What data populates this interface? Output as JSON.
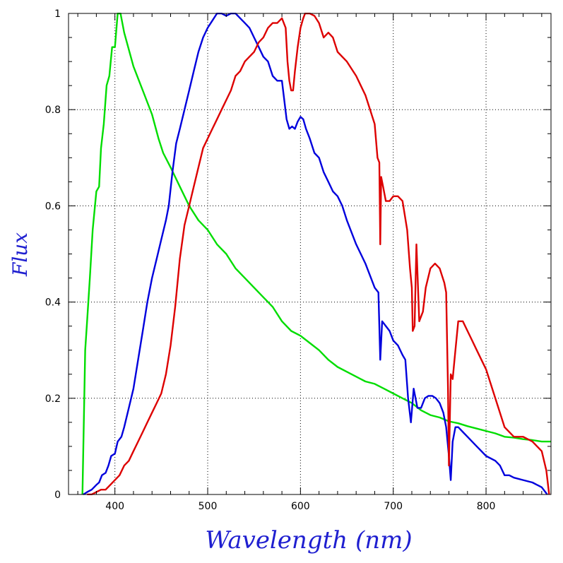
{
  "chart_data": {
    "type": "line",
    "xlabel": "Wavelength (nm)",
    "ylabel": "Flux",
    "xlim": [
      350,
      870
    ],
    "ylim": [
      0,
      1
    ],
    "xticks": [
      400,
      500,
      600,
      700,
      800
    ],
    "yticks": [
      0,
      0.2,
      0.4,
      0.6,
      0.8,
      1
    ],
    "ytick_labels": [
      "0",
      "0.2",
      "0.4",
      "0.6",
      "0.8",
      "1"
    ],
    "grid": true,
    "series": [
      {
        "color": "#00dd00",
        "x": [
          365,
          368,
          370,
          373,
          376,
          380,
          383,
          385,
          388,
          391,
          394,
          397,
          400,
          403,
          406,
          410,
          420,
          430,
          440,
          447,
          452,
          460,
          470,
          480,
          490,
          500,
          510,
          520,
          530,
          540,
          550,
          560,
          570,
          580,
          590,
          600,
          610,
          620,
          630,
          640,
          650,
          660,
          670,
          680,
          690,
          700,
          710,
          720,
          730,
          740,
          750,
          760,
          770,
          780,
          790,
          800,
          810,
          820,
          830,
          840,
          850,
          860,
          870
        ],
        "y": [
          0,
          0.3,
          0.36,
          0.45,
          0.55,
          0.63,
          0.64,
          0.72,
          0.77,
          0.85,
          0.87,
          0.93,
          0.93,
          1.0,
          1.0,
          0.96,
          0.89,
          0.84,
          0.79,
          0.74,
          0.71,
          0.68,
          0.64,
          0.6,
          0.57,
          0.55,
          0.52,
          0.5,
          0.47,
          0.45,
          0.43,
          0.41,
          0.39,
          0.36,
          0.34,
          0.33,
          0.315,
          0.3,
          0.28,
          0.265,
          0.255,
          0.245,
          0.235,
          0.23,
          0.22,
          0.21,
          0.2,
          0.19,
          0.175,
          0.165,
          0.16,
          0.152,
          0.148,
          0.142,
          0.137,
          0.132,
          0.127,
          0.12,
          0.118,
          0.115,
          0.113,
          0.11,
          0.11
        ]
      },
      {
        "color": "#0000dd",
        "x": [
          366,
          370,
          375,
          380,
          383,
          386,
          390,
          393,
          396,
          400,
          403,
          407,
          410,
          415,
          420,
          425,
          430,
          435,
          440,
          445,
          450,
          455,
          458,
          462,
          466,
          470,
          475,
          480,
          485,
          490,
          495,
          500,
          505,
          510,
          515,
          520,
          525,
          530,
          535,
          540,
          545,
          550,
          555,
          560,
          565,
          570,
          575,
          580,
          585,
          588,
          591,
          594,
          597,
          600,
          603,
          606,
          610,
          615,
          620,
          625,
          630,
          635,
          640,
          645,
          650,
          660,
          670,
          680,
          684,
          686,
          688,
          692,
          696,
          700,
          705,
          710,
          713,
          716,
          719,
          722,
          726,
          730,
          734,
          738,
          742,
          746,
          750,
          754,
          757,
          760,
          762,
          764,
          767,
          770,
          775,
          780,
          790,
          800,
          810,
          815,
          820,
          825,
          830,
          840,
          850,
          860,
          866
        ],
        "y": [
          0,
          0.005,
          0.01,
          0.02,
          0.025,
          0.04,
          0.045,
          0.06,
          0.08,
          0.085,
          0.11,
          0.12,
          0.14,
          0.18,
          0.22,
          0.28,
          0.34,
          0.4,
          0.45,
          0.49,
          0.53,
          0.57,
          0.6,
          0.67,
          0.73,
          0.76,
          0.8,
          0.84,
          0.88,
          0.92,
          0.95,
          0.97,
          0.985,
          1.0,
          1.0,
          0.995,
          1.0,
          1.0,
          0.99,
          0.98,
          0.97,
          0.95,
          0.93,
          0.91,
          0.9,
          0.87,
          0.86,
          0.86,
          0.78,
          0.76,
          0.765,
          0.76,
          0.775,
          0.785,
          0.78,
          0.76,
          0.74,
          0.71,
          0.7,
          0.67,
          0.65,
          0.63,
          0.62,
          0.6,
          0.57,
          0.52,
          0.48,
          0.43,
          0.42,
          0.28,
          0.36,
          0.35,
          0.34,
          0.32,
          0.31,
          0.29,
          0.28,
          0.2,
          0.15,
          0.22,
          0.18,
          0.18,
          0.2,
          0.205,
          0.205,
          0.2,
          0.19,
          0.17,
          0.14,
          0.08,
          0.03,
          0.11,
          0.14,
          0.14,
          0.13,
          0.12,
          0.1,
          0.08,
          0.07,
          0.06,
          0.04,
          0.04,
          0.035,
          0.03,
          0.025,
          0.015,
          0
        ]
      },
      {
        "color": "#dd0000",
        "x": [
          370,
          375,
          380,
          385,
          390,
          395,
          400,
          405,
          410,
          415,
          420,
          425,
          430,
          435,
          440,
          445,
          450,
          455,
          460,
          465,
          470,
          475,
          480,
          485,
          490,
          495,
          500,
          505,
          510,
          515,
          520,
          525,
          530,
          535,
          540,
          545,
          550,
          555,
          560,
          565,
          570,
          575,
          580,
          584,
          586,
          588,
          590,
          592,
          594,
          597,
          600,
          603,
          605,
          610,
          615,
          620,
          625,
          630,
          635,
          640,
          650,
          660,
          670,
          675,
          680,
          683,
          685,
          686,
          687,
          689,
          692,
          696,
          700,
          705,
          710,
          715,
          718,
          720,
          721,
          723,
          725,
          728,
          732,
          735,
          740,
          745,
          750,
          755,
          757,
          759,
          760,
          762,
          764,
          767,
          770,
          775,
          780,
          785,
          790,
          795,
          800,
          810,
          820,
          830,
          840,
          850,
          860,
          865,
          868
        ],
        "y": [
          0,
          0,
          0.005,
          0.01,
          0.01,
          0.02,
          0.03,
          0.04,
          0.06,
          0.07,
          0.09,
          0.11,
          0.13,
          0.15,
          0.17,
          0.19,
          0.21,
          0.25,
          0.31,
          0.39,
          0.49,
          0.56,
          0.6,
          0.64,
          0.68,
          0.72,
          0.74,
          0.76,
          0.78,
          0.8,
          0.82,
          0.84,
          0.87,
          0.88,
          0.9,
          0.91,
          0.92,
          0.94,
          0.95,
          0.97,
          0.98,
          0.98,
          0.99,
          0.97,
          0.9,
          0.86,
          0.84,
          0.84,
          0.88,
          0.93,
          0.97,
          0.99,
          1.0,
          1.0,
          0.995,
          0.98,
          0.95,
          0.96,
          0.95,
          0.92,
          0.9,
          0.87,
          0.83,
          0.8,
          0.77,
          0.7,
          0.69,
          0.52,
          0.66,
          0.64,
          0.61,
          0.61,
          0.62,
          0.62,
          0.61,
          0.55,
          0.47,
          0.43,
          0.34,
          0.35,
          0.52,
          0.36,
          0.38,
          0.43,
          0.47,
          0.48,
          0.47,
          0.44,
          0.42,
          0.22,
          0.06,
          0.25,
          0.24,
          0.3,
          0.36,
          0.36,
          0.34,
          0.32,
          0.3,
          0.28,
          0.26,
          0.2,
          0.14,
          0.12,
          0.12,
          0.11,
          0.09,
          0.05,
          0
        ]
      }
    ]
  }
}
